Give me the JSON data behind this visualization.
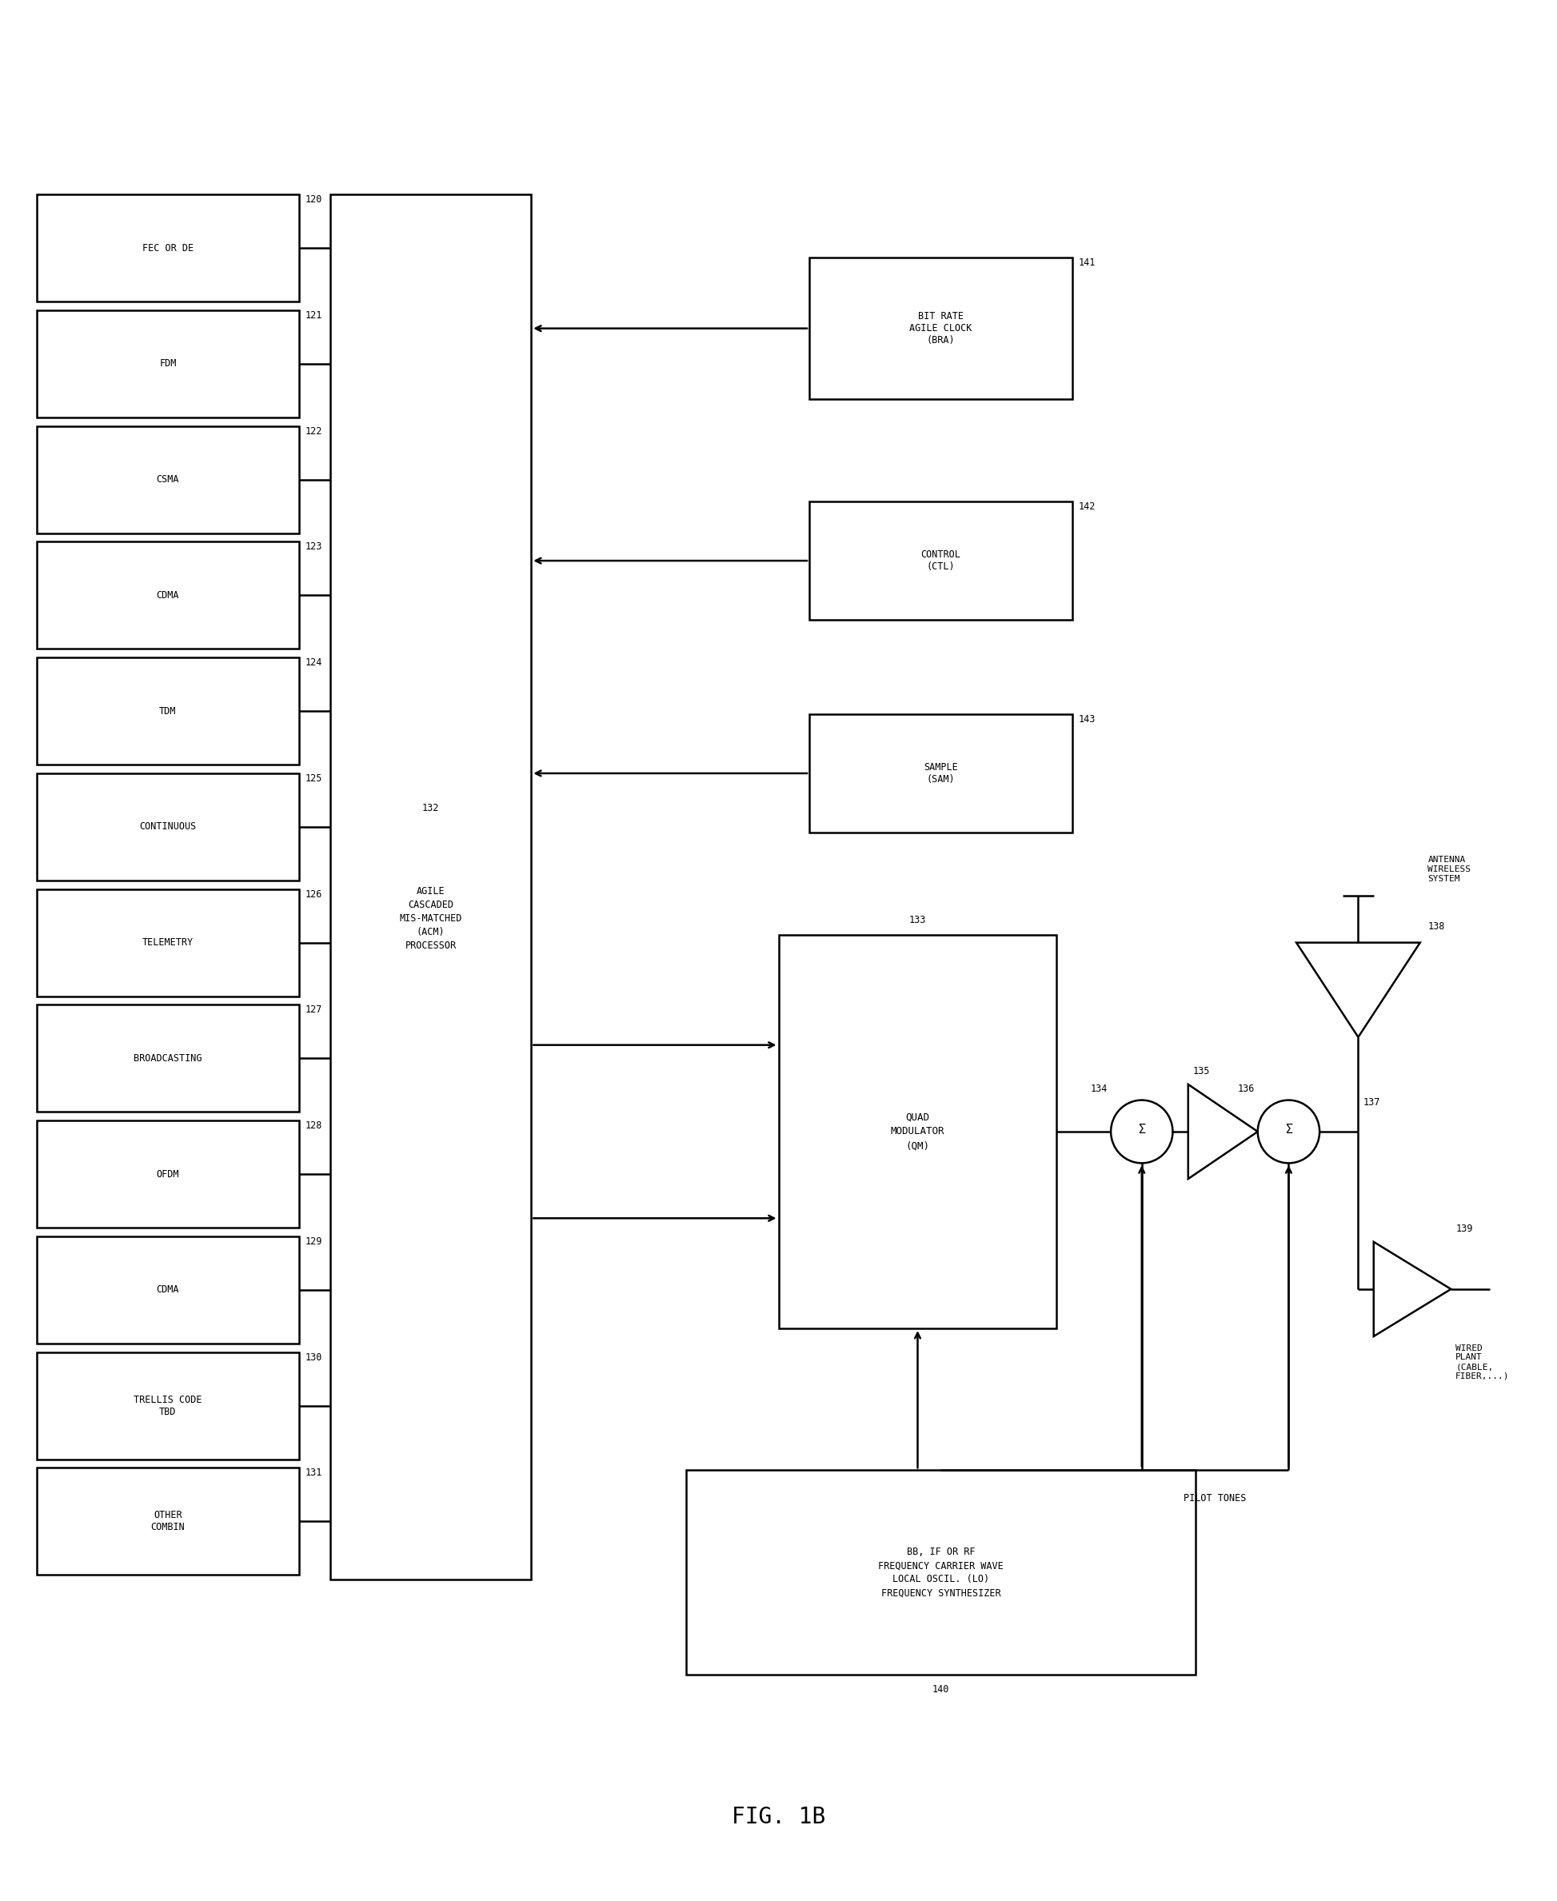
{
  "fig_width": 19.47,
  "fig_height": 23.77,
  "bg_color": "#ffffff",
  "line_color": "#000000",
  "lw": 1.8,
  "left_boxes": [
    {
      "label": "FEC OR DE",
      "num": "120"
    },
    {
      "label": "FDM",
      "num": "121"
    },
    {
      "label": "CSMA",
      "num": "122"
    },
    {
      "label": "CDMA",
      "num": "123"
    },
    {
      "label": "TDM",
      "num": "124"
    },
    {
      "label": "CONTINUOUS",
      "num": "125"
    },
    {
      "label": "TELEMETRY",
      "num": "126"
    },
    {
      "label": "BROADCASTING",
      "num": "127"
    },
    {
      "label": "OFDM",
      "num": "128"
    },
    {
      "label": "CDMA",
      "num": "129"
    },
    {
      "label": "TRELLIS CODE\nTBD",
      "num": "130"
    },
    {
      "label": "OTHER\nCOMBIN",
      "num": "131"
    }
  ],
  "caption": "FIG. 1B"
}
